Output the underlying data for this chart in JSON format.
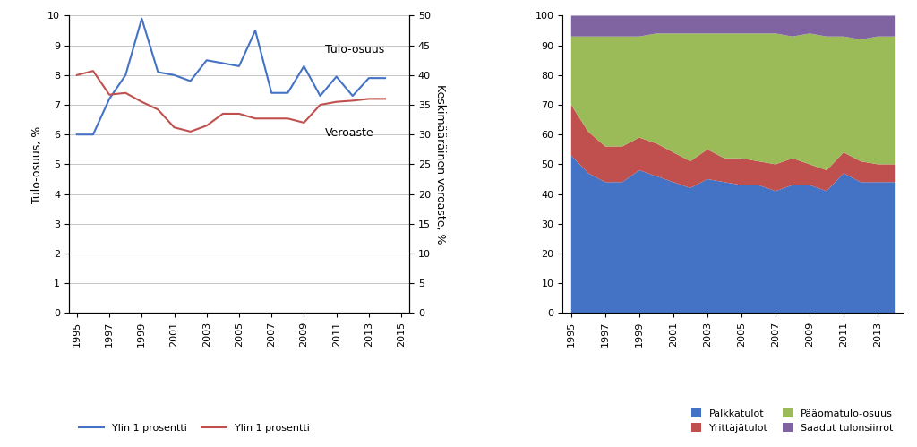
{
  "years": [
    1995,
    1996,
    1997,
    1998,
    1999,
    2000,
    2001,
    2002,
    2003,
    2004,
    2005,
    2006,
    2007,
    2008,
    2009,
    2010,
    2011,
    2012,
    2013,
    2014
  ],
  "tulo_osuus": [
    6.0,
    6.0,
    7.2,
    8.0,
    9.9,
    8.1,
    8.0,
    7.8,
    8.5,
    8.4,
    8.3,
    9.5,
    7.4,
    7.4,
    8.3,
    7.3,
    7.95,
    7.3,
    7.9,
    7.9
  ],
  "veroaste": [
    40.0,
    40.7,
    36.7,
    37.0,
    35.5,
    34.2,
    31.2,
    30.5,
    31.5,
    33.5,
    33.5,
    32.7,
    32.7,
    32.7,
    32.0,
    35.0,
    35.5,
    35.7,
    36.0,
    36.0
  ],
  "left_ylim": [
    0,
    10
  ],
  "left_yticks": [
    0,
    1,
    2,
    3,
    4,
    5,
    6,
    7,
    8,
    9,
    10
  ],
  "right_ylim": [
    0,
    50
  ],
  "right_yticks": [
    0,
    5,
    10,
    15,
    20,
    25,
    30,
    35,
    40,
    45,
    50
  ],
  "left_ylabel": "Tulo-osuus, %",
  "right_ylabel": "Keskimääräinen veroaste, %",
  "blue_label": "Ylin 1 prosentti",
  "red_label": "Ylin 1 prosentti",
  "tulo_osuus_label": "Tulo-osuus",
  "veroaste_label": "Veroaste",
  "blue_color": "#4472C4",
  "red_color": "#C0504D",
  "stack_years": [
    1995,
    1996,
    1997,
    1998,
    1999,
    2000,
    2001,
    2002,
    2003,
    2004,
    2005,
    2006,
    2007,
    2008,
    2009,
    2010,
    2011,
    2012,
    2013,
    2014
  ],
  "palkkatulot": [
    53,
    47,
    44,
    44,
    48,
    46,
    44,
    42,
    45,
    44,
    43,
    43,
    41,
    43,
    43,
    41,
    47,
    44,
    44,
    44
  ],
  "yrittajatulot": [
    17,
    14,
    12,
    12,
    11,
    11,
    10,
    9,
    10,
    8,
    9,
    8,
    9,
    9,
    7,
    7,
    7,
    7,
    6,
    6
  ],
  "paaomatulo": [
    23,
    32,
    37,
    37,
    34,
    37,
    40,
    43,
    39,
    42,
    42,
    43,
    44,
    41,
    44,
    45,
    39,
    41,
    43,
    43
  ],
  "saadut": [
    7,
    7,
    7,
    7,
    7,
    6,
    6,
    6,
    6,
    6,
    6,
    6,
    6,
    7,
    6,
    7,
    7,
    8,
    7,
    7
  ],
  "palkkatulot_color": "#4472C4",
  "yrittajatulot_color": "#C0504D",
  "paaomatulo_color": "#9BBB59",
  "saadut_color": "#8064A2",
  "stack_ylim": [
    0,
    100
  ],
  "stack_yticks": [
    0,
    10,
    20,
    30,
    40,
    50,
    60,
    70,
    80,
    90,
    100
  ],
  "legend_labels": [
    "Palkkatulot",
    "Yrittäjätulot",
    "Pääomatulo-osuus",
    "Saadut tulonsiirrot"
  ]
}
